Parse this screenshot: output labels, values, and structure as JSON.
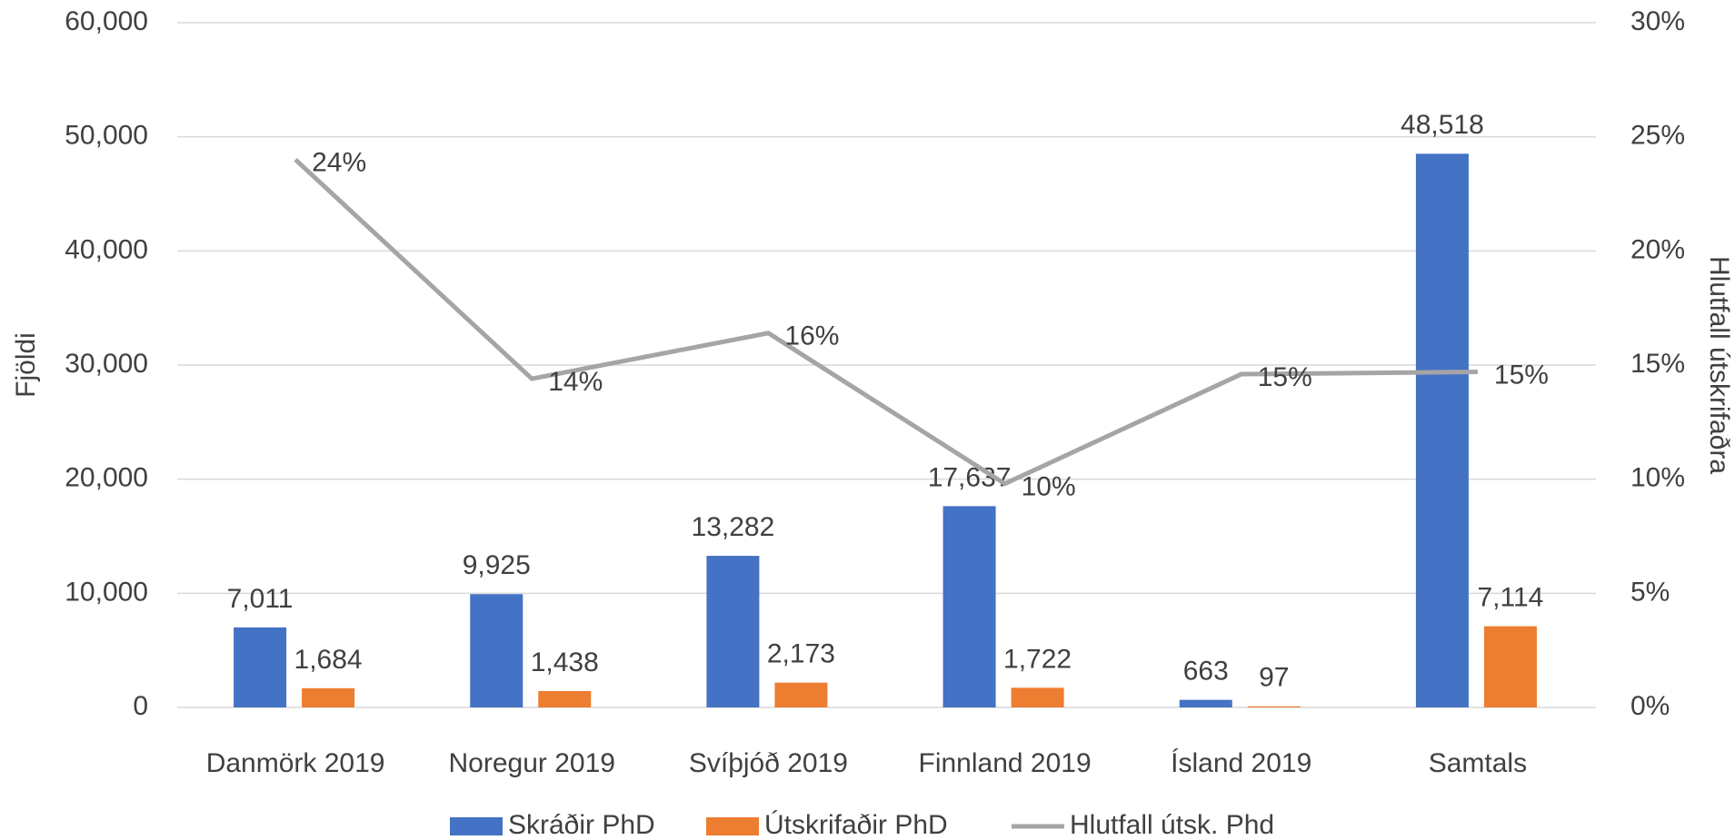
{
  "chart_data": {
    "type": "bar",
    "y_label": "Fjöldi",
    "y2_label": "Hlutfall útskrifaðra",
    "categories": [
      "Danmörk 2019",
      "Noregur 2019",
      "Svíþjóð 2019",
      "Finnland 2019",
      "Ísland 2019",
      "Samtals"
    ],
    "series": [
      {
        "name": "Skráðir PhD",
        "color": "#4472c4",
        "type": "bar",
        "values": [
          7011,
          9925,
          13282,
          17637,
          663,
          48518
        ],
        "value_labels": [
          "7,011",
          "9,925",
          "13,282",
          "17,637",
          "663",
          "48,518"
        ]
      },
      {
        "name": "Útskrifaðir PhD",
        "color": "#ed7d31",
        "type": "bar",
        "values": [
          1684,
          1438,
          2173,
          1722,
          97,
          7114
        ],
        "value_labels": [
          "1,684",
          "1,438",
          "2,173",
          "1,722",
          "97",
          "7,114"
        ]
      },
      {
        "name": "Hlutfall útsk. Phd",
        "color": "#a5a5a5",
        "type": "line",
        "axis": "y2",
        "values": [
          24.0,
          14.4,
          16.4,
          9.8,
          14.6,
          14.7
        ],
        "value_labels": [
          "24%",
          "14%",
          "16%",
          "10%",
          "15%",
          "15%"
        ]
      }
    ],
    "ylim": [
      0,
      60000
    ],
    "yticks": [
      0,
      {
        "value": 10000,
        "label": "10,000"
      },
      {
        "value": 20000,
        "label": "20,000"
      },
      {
        "value": 30000,
        "label": "30,000"
      },
      {
        "value": 40000,
        "label": "40,000"
      },
      {
        "value": 50000,
        "label": "50,000"
      },
      {
        "value": 60000,
        "label": "60,000"
      }
    ],
    "y2lim": [
      0,
      30
    ],
    "y2ticks": [
      {
        "value": 0,
        "label": "0%"
      },
      {
        "value": 5,
        "label": "5%"
      },
      {
        "value": 10,
        "label": "10%"
      },
      {
        "value": 15,
        "label": "15%"
      },
      {
        "value": 20,
        "label": "20%"
      },
      {
        "value": 25,
        "label": "25%"
      },
      {
        "value": 30,
        "label": "30%"
      }
    ],
    "grid": true,
    "legend": "bottom"
  }
}
